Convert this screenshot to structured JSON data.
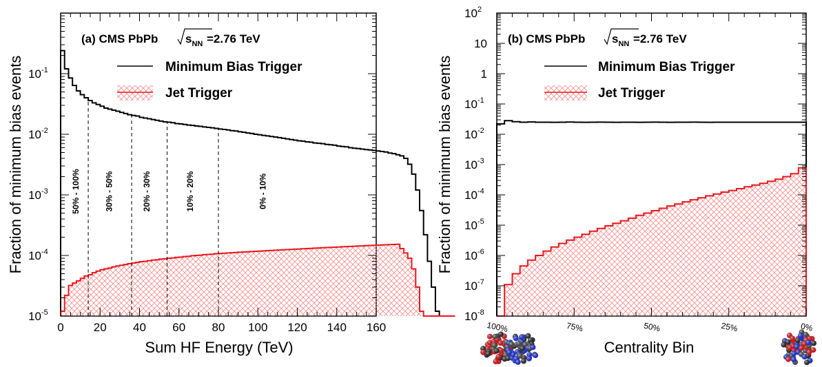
{
  "colors": {
    "min_bias": "#000000",
    "jet": "#e8191e",
    "hatch": "#f28b8b"
  },
  "chart_data": [
    {
      "type": "line",
      "title": "(a)  CMS PbPb",
      "title_sqrt": "s",
      "title_sub": "NN",
      "title_energy": "=2.76 TeV",
      "xlabel": "Sum HF Energy (TeV)",
      "ylabel": "Fraction of minimum bias events",
      "xlim": [
        0,
        160
      ],
      "ylim_log10": [
        -5,
        0
      ],
      "yscale": "log",
      "grid": false,
      "legend": "top-right",
      "x_ticks": [
        0,
        20,
        40,
        60,
        80,
        100,
        120,
        140,
        160
      ],
      "x_tick_labels": [
        "0",
        "20",
        "40",
        "60",
        "80",
        "100",
        "120",
        "140",
        "160"
      ],
      "y_ticks": [
        {
          "v": -5,
          "label": "10",
          "exp": "-5"
        },
        {
          "v": -4,
          "label": "10",
          "exp": "-4"
        },
        {
          "v": -3,
          "label": "10",
          "exp": "-3"
        },
        {
          "v": -2,
          "label": "10",
          "exp": "-2"
        },
        {
          "v": -1,
          "label": "10",
          "exp": "-1"
        }
      ],
      "bin_width": 2,
      "series": [
        {
          "name": "Minimum Bias Trigger",
          "style": "line",
          "values": [
            0.24,
            0.12,
            0.085,
            0.064,
            0.052,
            0.045,
            0.04,
            0.036,
            0.033,
            0.031,
            0.029,
            0.027,
            0.026,
            0.025,
            0.024,
            0.023,
            0.022,
            0.021,
            0.0205,
            0.02,
            0.019,
            0.0185,
            0.018,
            0.0175,
            0.017,
            0.0165,
            0.016,
            0.0158,
            0.0155,
            0.015,
            0.0148,
            0.0145,
            0.0142,
            0.014,
            0.0137,
            0.0135,
            0.0132,
            0.013,
            0.0128,
            0.0125,
            0.0122,
            0.012,
            0.0118,
            0.0115,
            0.0113,
            0.011,
            0.0108,
            0.0105,
            0.0103,
            0.01,
            0.0098,
            0.0096,
            0.0094,
            0.0092,
            0.009,
            0.0088,
            0.0086,
            0.0084,
            0.0082,
            0.008,
            0.0078,
            0.0077,
            0.0075,
            0.0074,
            0.0072,
            0.0071,
            0.007,
            0.0068,
            0.0067,
            0.0066,
            0.0064,
            0.0063,
            0.0062,
            0.006,
            0.0059,
            0.0058,
            0.0057,
            0.0056,
            0.0055,
            0.0054,
            0.0053,
            0.0052,
            0.0051,
            0.0049,
            0.0048,
            0.0046,
            0.0044,
            0.004,
            0.0032,
            0.0022,
            0.0012,
            0.00055,
            0.00022,
            8e-05,
            3e-05,
            1.2e-05,
            0,
            0,
            0,
            0
          ]
        },
        {
          "name": "Jet Trigger",
          "style": "hatched",
          "values": [
            1.2e-05,
            2.2e-05,
            3.2e-05,
            3.5e-05,
            3.8e-05,
            4.2e-05,
            4.6e-05,
            4.8e-05,
            5.2e-05,
            5.5e-05,
            5.8e-05,
            6e-05,
            6.2e-05,
            6.5e-05,
            6.7e-05,
            6.9e-05,
            7.1e-05,
            7.3e-05,
            7.5e-05,
            7.7e-05,
            7.9e-05,
            8e-05,
            8.2e-05,
            8.4e-05,
            8.5e-05,
            8.7e-05,
            8.8e-05,
            9e-05,
            9.1e-05,
            9.3e-05,
            9.4e-05,
            9.6e-05,
            9.7e-05,
            9.9e-05,
            0.0001,
            0.000101,
            0.000103,
            0.000104,
            0.000105,
            0.000107,
            0.000108,
            0.000109,
            0.00011,
            0.000111,
            0.000112,
            0.000113,
            0.000114,
            0.000115,
            0.000116,
            0.000117,
            0.000118,
            0.000119,
            0.00012,
            0.000121,
            0.000122,
            0.000123,
            0.000124,
            0.000125,
            0.000126,
            0.000127,
            0.000128,
            0.000129,
            0.00013,
            0.000131,
            0.000132,
            0.000133,
            0.000134,
            0.000135,
            0.000136,
            0.000137,
            0.000138,
            0.000139,
            0.00014,
            0.000141,
            0.000142,
            0.000143,
            0.000144,
            0.000145,
            0.000146,
            0.000147,
            0.000148,
            0.000149,
            0.00015,
            0.000151,
            0.000152,
            0.000153,
            0.00013,
            0.00011,
            9e-05,
            6e-05,
            3e-05,
            1.2e-05,
            0,
            0,
            0,
            0,
            0,
            0,
            0,
            0
          ]
        }
      ],
      "band_edges": [
        14,
        36,
        54,
        80
      ],
      "band_labels": [
        {
          "label": "50% - 100%",
          "x": 9
        },
        {
          "label": "30% - 50%",
          "x": 26
        },
        {
          "label": "20% - 30%",
          "x": 45
        },
        {
          "label": "10% - 20%",
          "x": 67
        },
        {
          "label": "0% - 10%",
          "x": 104
        }
      ]
    },
    {
      "type": "line",
      "title": "(b)  CMS PbPb",
      "title_sqrt": "s",
      "title_sub": "NN",
      "title_energy": "=2.76 TeV",
      "xlabel": "Centrality Bin",
      "ylabel": "Fraction of minimum bias events",
      "xlim": [
        0,
        40
      ],
      "ylim_log10": [
        -8,
        2
      ],
      "yscale": "log",
      "grid": false,
      "legend": "top-right",
      "x_ticks": [
        0,
        10,
        20,
        30,
        40
      ],
      "x_tick_labels": [
        "100%",
        "75%",
        "50%",
        "25%",
        "0%"
      ],
      "y_ticks": [
        {
          "v": -8,
          "label": "10",
          "exp": "-8"
        },
        {
          "v": -7,
          "label": "10",
          "exp": "-7"
        },
        {
          "v": -6,
          "label": "10",
          "exp": "-6"
        },
        {
          "v": -5,
          "label": "10",
          "exp": "-5"
        },
        {
          "v": -4,
          "label": "10",
          "exp": "-4"
        },
        {
          "v": -3,
          "label": "10",
          "exp": "-3"
        },
        {
          "v": -2,
          "label": "10",
          "exp": "-2"
        },
        {
          "v": -1,
          "label": "10",
          "exp": "-1"
        },
        {
          "v": 0,
          "label": "1",
          "exp": ""
        },
        {
          "v": 1,
          "label": "10",
          "exp": ""
        },
        {
          "v": 2,
          "label": "10",
          "exp": "2"
        }
      ],
      "bin_width": 1,
      "series": [
        {
          "name": "Minimum Bias Trigger",
          "style": "line",
          "values": [
            0.022,
            0.028,
            0.026,
            0.025,
            0.0255,
            0.025,
            0.025,
            0.0248,
            0.025,
            0.0252,
            0.025,
            0.0249,
            0.025,
            0.0251,
            0.025,
            0.0249,
            0.025,
            0.025,
            0.0249,
            0.025,
            0.0251,
            0.025,
            0.0249,
            0.025,
            0.025,
            0.0251,
            0.025,
            0.0249,
            0.025,
            0.025,
            0.025,
            0.025,
            0.025,
            0.025,
            0.025,
            0.025,
            0.025,
            0.025,
            0.025,
            0.025
          ]
        },
        {
          "name": "Jet Trigger",
          "style": "hatched",
          "values": [
            0,
            1.1e-07,
            2.5e-07,
            4.5e-07,
            7e-07,
            1e-06,
            1.4e-06,
            1.9e-06,
            2.5e-06,
            3.2e-06,
            4e-06,
            5e-06,
            6.3e-06,
            7.8e-06,
            9.5e-06,
            1.15e-05,
            1.4e-05,
            1.7e-05,
            2.1e-05,
            2.5e-05,
            3e-05,
            3.6e-05,
            4.3e-05,
            5e-05,
            5.9e-05,
            6.9e-05,
            8e-05,
            9.3e-05,
            0.000107,
            0.000123,
            0.00014,
            0.00016,
            0.000185,
            0.00021,
            0.00024,
            0.00028,
            0.00033,
            0.0004,
            0.0005,
            0.00078
          ]
        }
      ],
      "nucleus_icons": [
        "nucleus-pair-icon",
        "nucleus-overlap-icon"
      ]
    }
  ]
}
